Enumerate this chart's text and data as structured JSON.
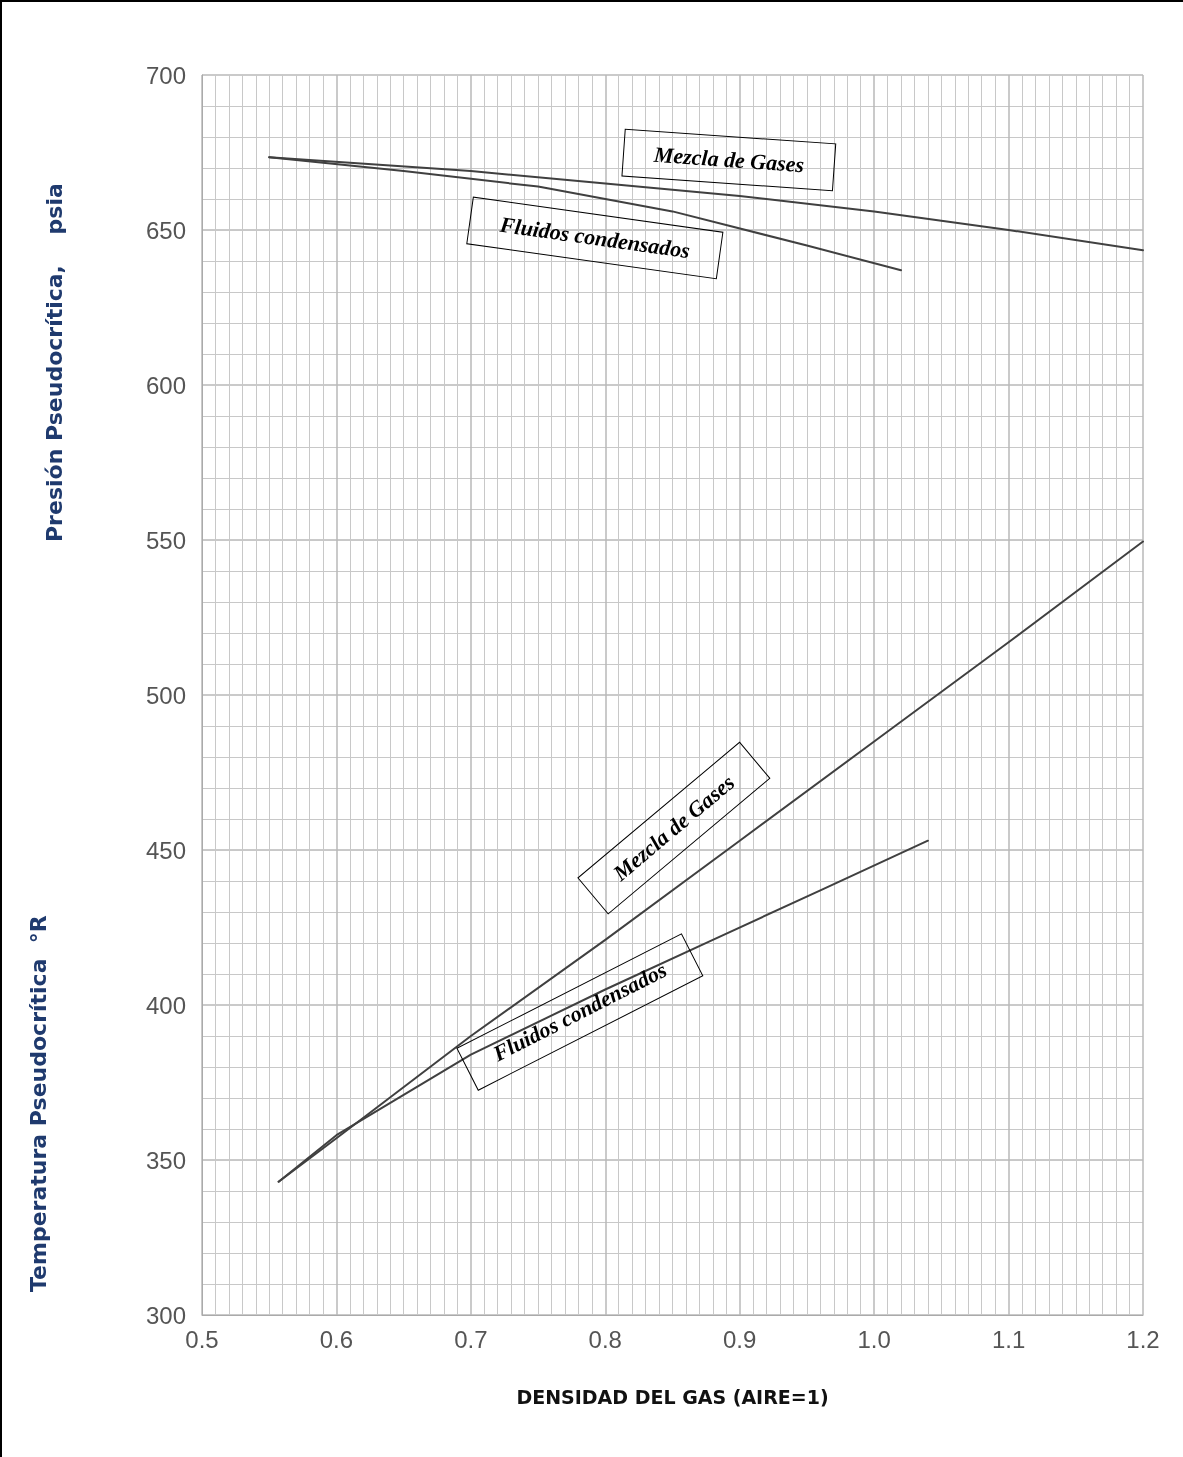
{
  "chart_data": {
    "type": "line",
    "xlabel": "DENSIDAD DEL GAS (AIRE=1)",
    "ylabel": "Presión Pseudocrítica,    psia",
    "xlim": [
      0.5,
      1.2
    ],
    "xticks": [
      0.5,
      0.6,
      0.7,
      0.8,
      0.9,
      {
        "value": 1,
        "label": "1.0"
      },
      1.1,
      1.2
    ],
    "ylim": [
      300,
      700
    ],
    "yticks": [
      300,
      350,
      400,
      450,
      500,
      550,
      600,
      650,
      700
    ],
    "grid": true,
    "line_style": "solid",
    "series": [
      {
        "color": "#404040",
        "x": [
          0.55,
          0.7,
          0.8,
          0.9,
          1.0,
          1.1,
          1.2
        ],
        "values": [
          673.5,
          669,
          665,
          661,
          656,
          650,
          643.5
        ]
      },
      {
        "color": "#404040",
        "x": [
          0.55,
          0.65,
          0.75,
          0.85,
          0.95,
          1.02
        ],
        "values": [
          673.5,
          669,
          664,
          656,
          645,
          637
        ]
      },
      {
        "color": "#404040",
        "x": [
          0.557,
          0.6,
          0.7,
          0.8,
          0.9,
          1.0,
          1.1,
          1.2
        ],
        "values": [
          343,
          357,
          390,
          421,
          453,
          485,
          517,
          549.5
        ]
      },
      {
        "color": "#404040",
        "x": [
          0.557,
          0.6,
          0.7,
          0.8,
          0.88,
          0.96,
          1.04
        ],
        "values": [
          343,
          358,
          384,
          405,
          421,
          437,
          453
        ]
      }
    ],
    "annotations": [
      "Mezcla de Gases",
      "Fluidos condensados",
      "Mezcla de Gases",
      "Fluidos condensados",
      "Temperatura Pseudocrítica  °R"
    ]
  }
}
